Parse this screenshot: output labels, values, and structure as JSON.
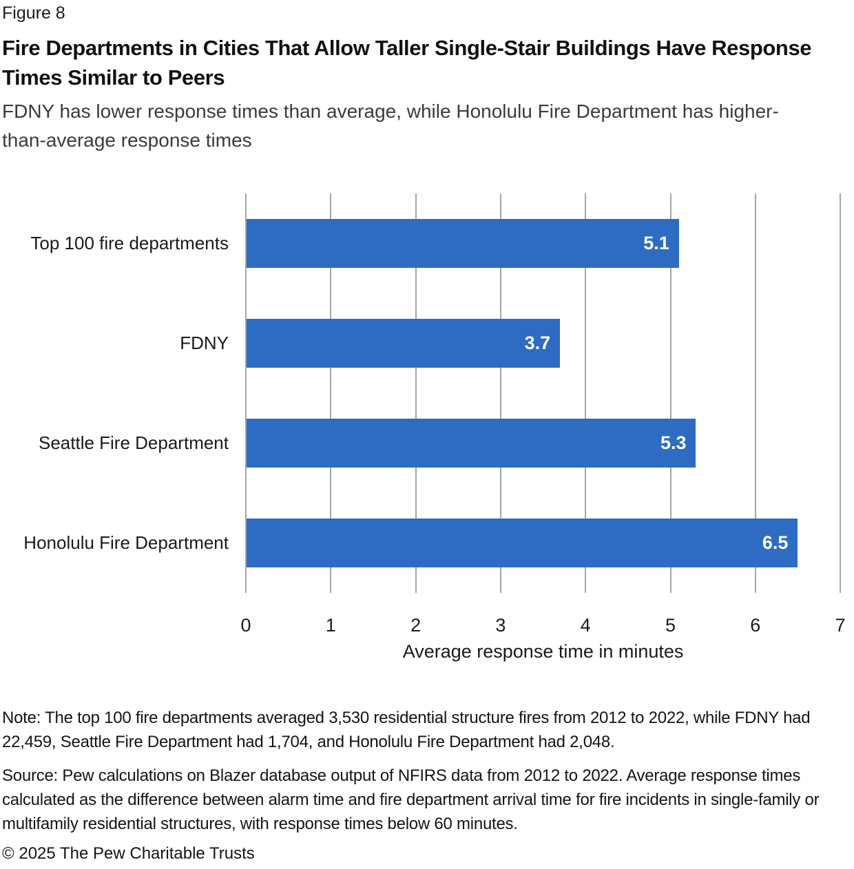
{
  "figure_label": "Figure 8",
  "title": "Fire Departments in Cities That Allow Taller Single-Stair Buildings Have Response Times Similar to Peers",
  "subtitle": "FDNY has lower response times than average, while Honolulu Fire Department has higher-than-average response times",
  "chart_data": {
    "type": "bar",
    "orientation": "horizontal",
    "categories": [
      "Top 100 fire departments",
      "FDNY",
      "Seattle Fire Department",
      "Honolulu Fire Department"
    ],
    "values": [
      5.1,
      3.7,
      5.3,
      6.5
    ],
    "value_labels": [
      "5.1",
      "3.7",
      "5.3",
      "6.5"
    ],
    "xlabel": "Average response time in minutes",
    "xlim": [
      0,
      7
    ],
    "xticks": [
      0,
      1,
      2,
      3,
      4,
      5,
      6,
      7
    ],
    "grid": true,
    "legend": false,
    "bar_color": "#2d6cc2",
    "value_label_color": "#ffffff",
    "gridline_color": "#a5a5a5"
  },
  "footer": {
    "note": "Note: The top 100 fire departments averaged 3,530 residential structure fires from 2012 to 2022, while FDNY had 22,459, Seattle Fire Department had 1,704, and Honolulu Fire Department had 2,048.",
    "source": "Source: Pew calculations on Blazer database output of NFIRS data from 2012 to 2022. Average response times calculated as the difference between alarm time and fire department arrival time for fire incidents in single-family or multifamily residential structures, with response times below 60 minutes.",
    "copyright": "© 2025 The Pew Charitable Trusts"
  }
}
